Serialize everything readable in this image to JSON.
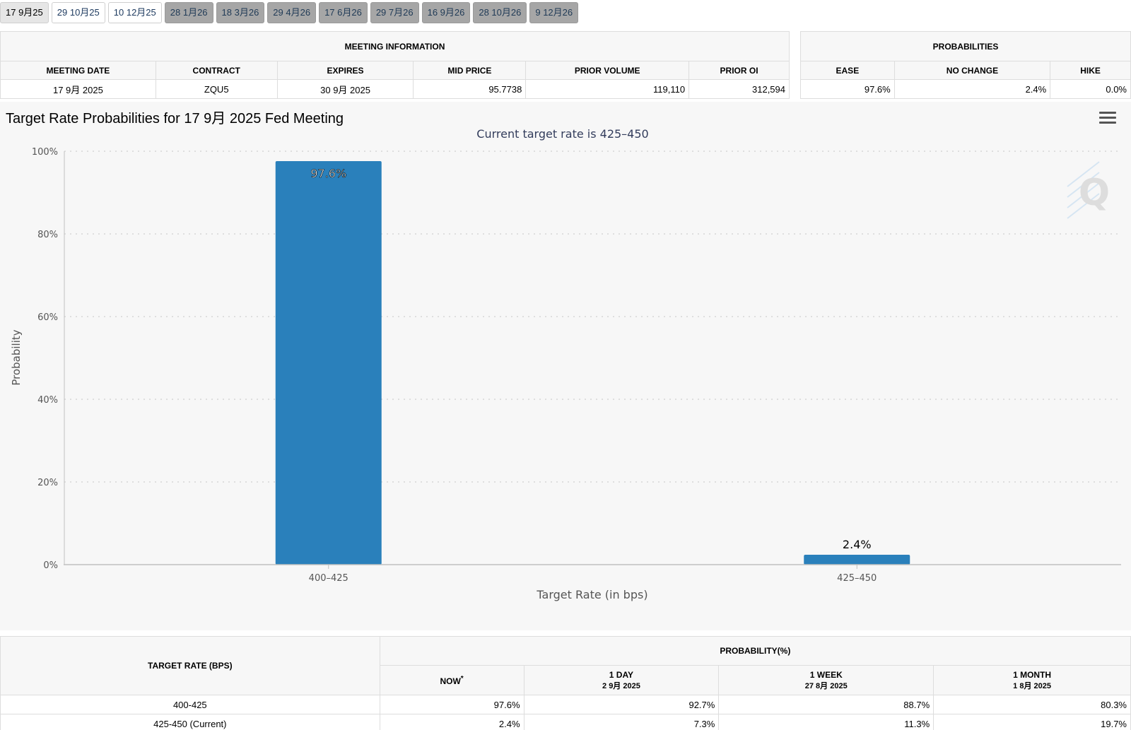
{
  "tabs": [
    {
      "label": "17 9月25",
      "state": "active"
    },
    {
      "label": "29 10月25",
      "state": "avail"
    },
    {
      "label": "10 12月25",
      "state": "avail"
    },
    {
      "label": "28 1月26",
      "state": "future"
    },
    {
      "label": "18 3月26",
      "state": "future"
    },
    {
      "label": "29 4月26",
      "state": "future"
    },
    {
      "label": "17 6月26",
      "state": "future"
    },
    {
      "label": "29 7月26",
      "state": "future"
    },
    {
      "label": "16 9月26",
      "state": "future"
    },
    {
      "label": "28 10月26",
      "state": "future"
    },
    {
      "label": "9 12月26",
      "state": "future"
    }
  ],
  "meeting_info": {
    "title": "MEETING INFORMATION",
    "headers": [
      "MEETING DATE",
      "CONTRACT",
      "EXPIRES",
      "MID PRICE",
      "PRIOR VOLUME",
      "PRIOR OI"
    ],
    "row": [
      "17 9月 2025",
      "ZQU5",
      "30 9月 2025",
      "95.7738",
      "119,110",
      "312,594"
    ]
  },
  "probabilities": {
    "title": "PROBABILITIES",
    "headers": [
      "EASE",
      "NO CHANGE",
      "HIKE"
    ],
    "row": [
      "97.6%",
      "2.4%",
      "0.0%"
    ]
  },
  "chart": {
    "title": "Target Rate Probabilities for 17 9月 2025 Fed Meeting",
    "menu_icon": "hamburger-menu-icon",
    "watermark": "Q"
  },
  "chart_data": {
    "type": "bar",
    "title": "Target Rate Probabilities for 17 9月 2025 Fed Meeting",
    "subtitle": "Current target rate is 425–450",
    "categories": [
      "400–425",
      "425–450"
    ],
    "values": [
      97.6,
      2.4
    ],
    "data_labels": [
      "97.6%",
      "2.4%"
    ],
    "xlabel": "Target Rate (in bps)",
    "ylabel": "Probability",
    "ylim": [
      0,
      100
    ],
    "yticks": [
      "0%",
      "20%",
      "40%",
      "60%",
      "80%",
      "100%"
    ],
    "grid": true,
    "bar_color": "#2a80bb"
  },
  "bottom_table": {
    "target_header": "TARGET RATE (BPS)",
    "prob_header": "PROBABILITY(%)",
    "columns": [
      {
        "label": "NOW",
        "sup": "*",
        "date": ""
      },
      {
        "label": "1 DAY",
        "date": "2 9月 2025"
      },
      {
        "label": "1 WEEK",
        "date": "27 8月 2025"
      },
      {
        "label": "1 MONTH",
        "date": "1 8月 2025"
      }
    ],
    "rows": [
      {
        "rate": "400-425",
        "values": [
          "97.6%",
          "92.7%",
          "88.7%",
          "80.3%"
        ]
      },
      {
        "rate": "425-450 (Current)",
        "values": [
          "2.4%",
          "7.3%",
          "11.3%",
          "19.7%"
        ]
      }
    ]
  }
}
